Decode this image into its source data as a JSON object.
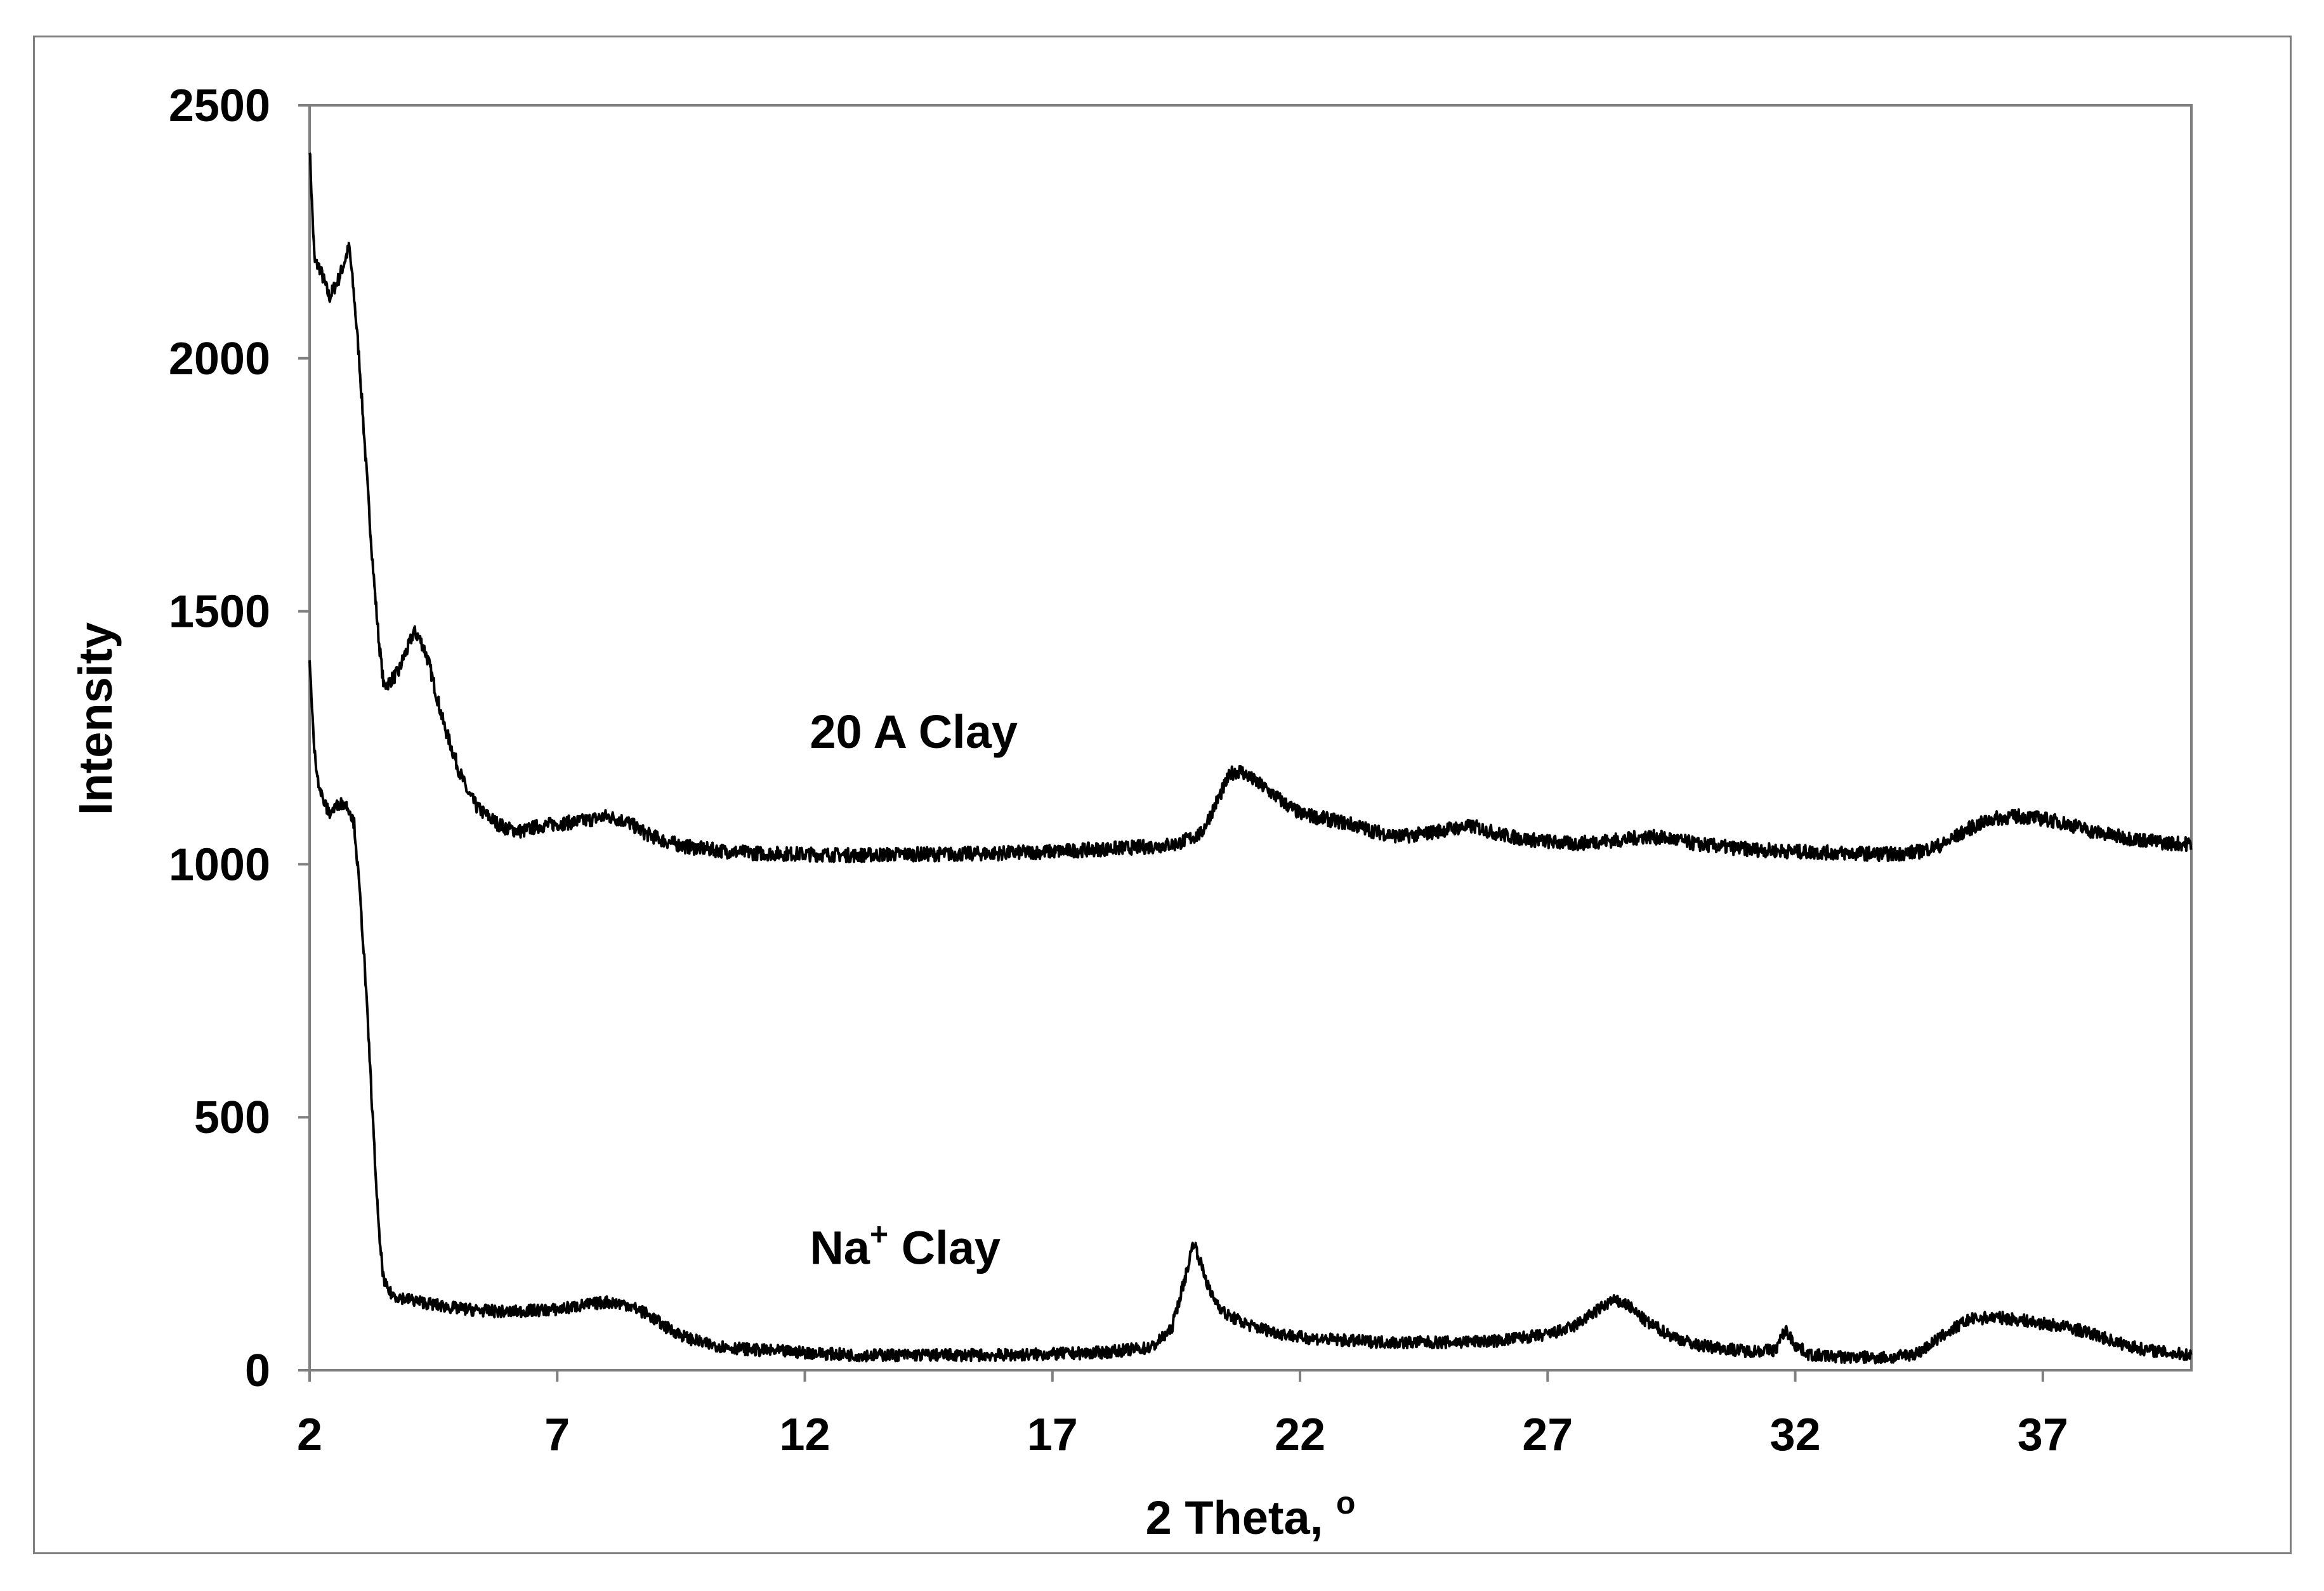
{
  "chart_data": {
    "type": "line",
    "title": "",
    "xlabel": "2 Theta, ",
    "xlabel_superscript": "o",
    "ylabel": "Intensity",
    "xlim": [
      2,
      40
    ],
    "ylim": [
      0,
      2500
    ],
    "x_ticks": [
      2,
      7,
      12,
      17,
      22,
      27,
      32,
      37
    ],
    "y_ticks": [
      0,
      500,
      1000,
      1500,
      2000,
      2500
    ],
    "grid": false,
    "legend": "none",
    "line_color": "#000000",
    "annotations": [
      {
        "text": "20 A Clay",
        "superscript": "",
        "suffix": "",
        "x": 12.1,
        "y": 1230
      },
      {
        "text": "Na",
        "superscript": "+",
        "suffix": " Clay",
        "x": 12.1,
        "y": 210
      }
    ],
    "series": [
      {
        "x": [
          2.0,
          2.05,
          2.1,
          2.2,
          2.3,
          2.4,
          2.5,
          2.6,
          2.7,
          2.8,
          2.9,
          3.0,
          3.1,
          3.2,
          3.3,
          3.4,
          3.5,
          3.6,
          3.7,
          3.8,
          3.9,
          4.0,
          4.1,
          4.2,
          4.3,
          4.4,
          4.5,
          4.6,
          4.7,
          4.8,
          5.0,
          5.2,
          5.4,
          5.6,
          5.8,
          6.0,
          6.3,
          6.6,
          7.0,
          7.5,
          8.0,
          8.4,
          8.8,
          9.2,
          9.6,
          10.0,
          10.5,
          11.0,
          12.0,
          13.0,
          14.0,
          15.0,
          16.0,
          17.0,
          18.0,
          19.0,
          19.5,
          20.0,
          20.3,
          20.6,
          20.8,
          21.0,
          21.3,
          21.7,
          22.0,
          22.5,
          23.0,
          23.5,
          24.0,
          24.5,
          25.0,
          25.5,
          26.0,
          26.5,
          27.0,
          27.5,
          28.0,
          28.5,
          29.0,
          29.5,
          30.0,
          30.5,
          31.0,
          32.0,
          33.0,
          34.0,
          34.5,
          35.0,
          35.5,
          36.0,
          36.5,
          37.0,
          37.5,
          38.0,
          38.5,
          39.0,
          39.5,
          40.0
        ],
        "y": [
          2420,
          2300,
          2190,
          2180,
          2150,
          2120,
          2140,
          2160,
          2190,
          2220,
          2120,
          2000,
          1850,
          1700,
          1560,
          1440,
          1350,
          1360,
          1370,
          1380,
          1410,
          1430,
          1460,
          1450,
          1430,
          1400,
          1360,
          1320,
          1280,
          1250,
          1190,
          1140,
          1110,
          1095,
          1080,
          1070,
          1065,
          1075,
          1080,
          1085,
          1095,
          1085,
          1060,
          1045,
          1035,
          1030,
          1025,
          1022,
          1020,
          1018,
          1020,
          1020,
          1022,
          1025,
          1030,
          1035,
          1040,
          1060,
          1120,
          1180,
          1185,
          1170,
          1150,
          1120,
          1100,
          1090,
          1080,
          1065,
          1055,
          1060,
          1070,
          1075,
          1060,
          1050,
          1045,
          1040,
          1045,
          1048,
          1055,
          1050,
          1040,
          1035,
          1030,
          1025,
          1022,
          1020,
          1025,
          1040,
          1070,
          1090,
          1095,
          1090,
          1080,
          1065,
          1055,
          1048,
          1042,
          1040
        ],
        "noise": 14
      },
      {
        "x": [
          2.0,
          2.05,
          2.1,
          2.2,
          2.3,
          2.4,
          2.5,
          2.6,
          2.7,
          2.8,
          2.9,
          3.0,
          3.1,
          3.2,
          3.3,
          3.4,
          3.5,
          3.6,
          3.7,
          3.8,
          4.0,
          4.5,
          5.0,
          5.5,
          6.0,
          6.5,
          7.0,
          7.5,
          8.0,
          8.4,
          8.8,
          9.2,
          9.6,
          10.0,
          10.5,
          11.0,
          12.0,
          13.0,
          14.0,
          15.0,
          16.0,
          17.0,
          18.0,
          19.0,
          19.4,
          19.7,
          19.85,
          20.0,
          20.2,
          20.5,
          21.0,
          21.5,
          22.0,
          23.0,
          24.0,
          25.0,
          26.0,
          26.5,
          27.0,
          27.5,
          28.0,
          28.3,
          28.6,
          29.0,
          29.5,
          30.0,
          31.0,
          31.6,
          31.8,
          32.0,
          32.3,
          33.0,
          34.0,
          34.5,
          35.0,
          35.5,
          36.0,
          36.5,
          37.0,
          37.5,
          38.0,
          38.5,
          39.0,
          39.5,
          40.0
        ],
        "y": [
          1410,
          1300,
          1220,
          1150,
          1120,
          1100,
          1110,
          1120,
          1120,
          1110,
          1080,
          960,
          820,
          640,
          450,
          270,
          175,
          155,
          148,
          145,
          140,
          130,
          122,
          118,
          115,
          118,
          120,
          128,
          135,
          130,
          112,
          85,
          65,
          52,
          45,
          40,
          35,
          30,
          30,
          30,
          30,
          32,
          35,
          45,
          80,
          190,
          255,
          210,
          150,
          110,
          88,
          75,
          65,
          58,
          55,
          55,
          58,
          65,
          70,
          85,
          118,
          138,
          130,
          95,
          68,
          50,
          38,
          40,
          80,
          50,
          30,
          26,
          25,
          35,
          70,
          100,
          105,
          100,
          92,
          85,
          72,
          55,
          42,
          35,
          30
        ],
        "noise": 12
      }
    ]
  }
}
